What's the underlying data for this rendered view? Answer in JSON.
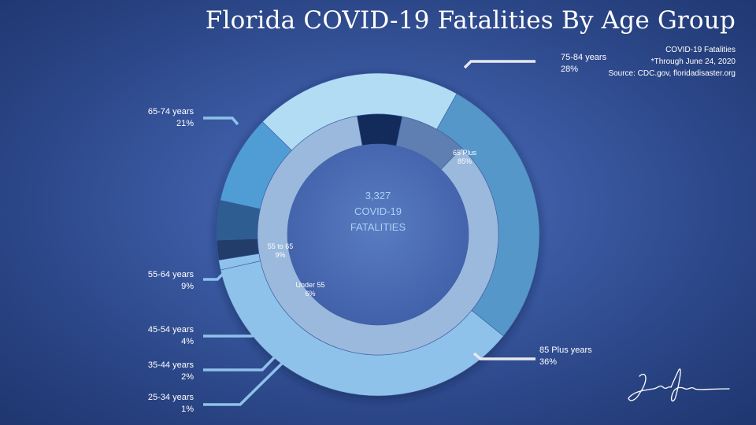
{
  "header": {
    "title": "Florida COVID-19 Fatalities By Age Group",
    "subtitle": "COVID-19 Fatalities",
    "date_note": "*Through June 24, 2020",
    "source": "Source: CDC.gov, floridadisaster.org"
  },
  "center": {
    "total": "3,327",
    "line1": "COVID-19",
    "line2": "FATALITIES"
  },
  "chart_data": {
    "type": "pie",
    "donut": true,
    "title": "Florida COVID-19 Fatalities By Age Group",
    "total": 3327,
    "outer_ring": [
      {
        "label": "85 Plus years",
        "percent_label": "36%",
        "value": 36,
        "color": "#8ec2ea"
      },
      {
        "label": "25-34 years",
        "percent_label": "1%",
        "value": 1,
        "color": "#8ec2ea"
      },
      {
        "label": "35-44 years",
        "percent_label": "2%",
        "value": 2,
        "color": "#203c6a"
      },
      {
        "label": "45-54 years",
        "percent_label": "4%",
        "value": 4,
        "color": "#2e5d92"
      },
      {
        "label": "55-64 years",
        "percent_label": "9%",
        "value": 9,
        "color": "#4f9dd4"
      },
      {
        "label": "65-74 years",
        "percent_label": "21%",
        "value": 21,
        "color": "#b2dcf4"
      },
      {
        "label": "75-84 years",
        "percent_label": "28%",
        "value": 28,
        "color": "#5697c9"
      }
    ],
    "inner_ring": [
      {
        "label": "65 Plus",
        "percent_label": "85%",
        "value": 85,
        "color": "#9bb9dc"
      },
      {
        "label": "Under 55",
        "percent_label": "6%",
        "value": 6,
        "color": "#122b5a"
      },
      {
        "label": "55 to 65",
        "percent_label": "9%",
        "value": 9,
        "color": "#5f7fb2"
      }
    ]
  },
  "signature": "Lee Shirreta"
}
